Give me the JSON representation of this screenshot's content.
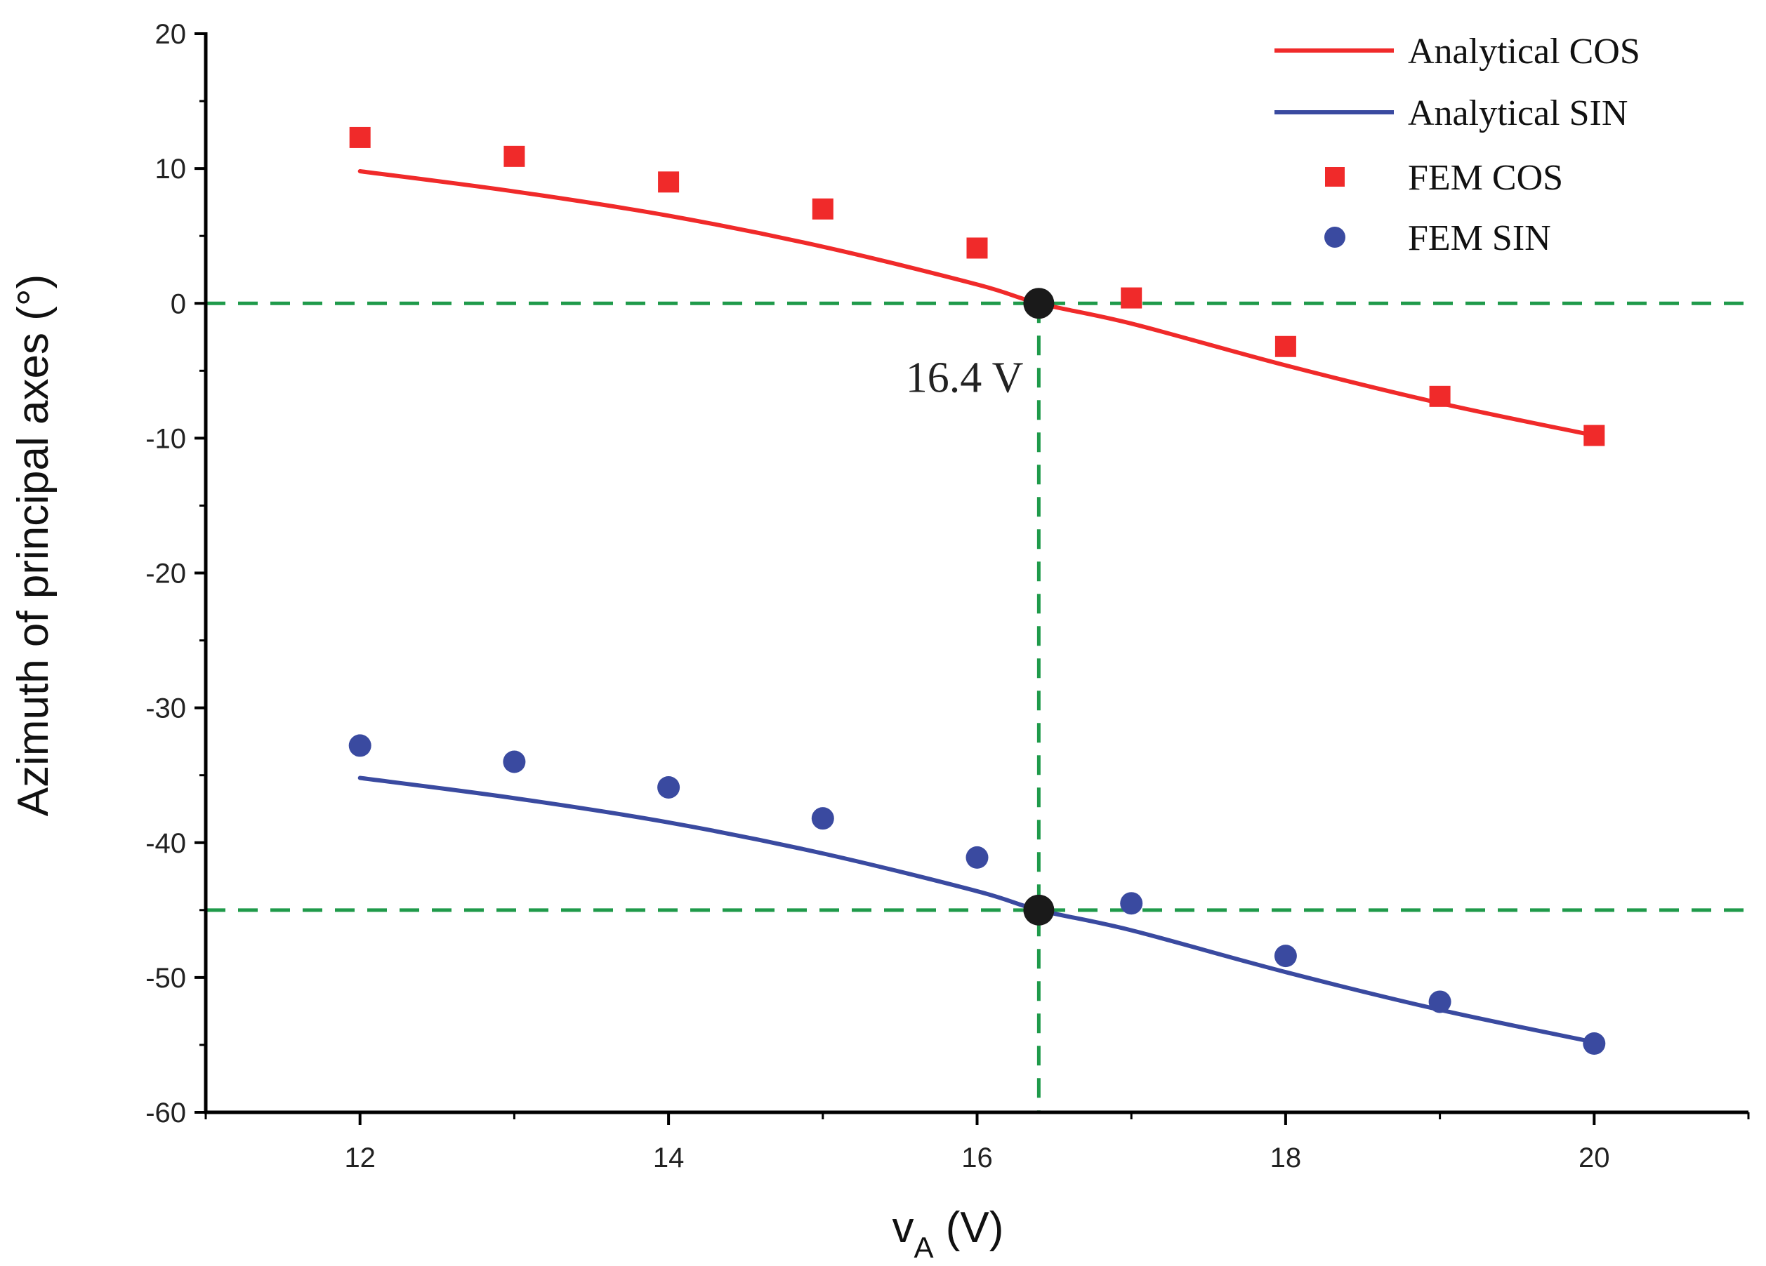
{
  "colors": {
    "cos": "#f02a2a",
    "sin": "#3a4aa0",
    "guide": "#1f9a4a",
    "marker": "#1a1a1a",
    "axis": "#000000"
  },
  "chart_data": {
    "type": "scatter",
    "xlabel_main": "v",
    "xlabel_sub": "A",
    "xlabel_unit": " (V)",
    "ylabel": "Azimuth of principal axes (°)",
    "xlim": [
      11,
      21
    ],
    "ylim": [
      -60,
      20
    ],
    "x_ticks": [
      12,
      14,
      16,
      18,
      20
    ],
    "x_tick_labels": [
      "12",
      "14",
      "16",
      "18",
      "20"
    ],
    "y_ticks": [
      20,
      10,
      0,
      -10,
      -20,
      -30,
      -40,
      -50,
      -60
    ],
    "y_tick_labels": [
      "20",
      "10",
      "0",
      "-10",
      "-20",
      "-30",
      "-40",
      "-50",
      "-60"
    ],
    "legend_position": "top-right",
    "series": [
      {
        "name": "Analytical COS",
        "kind": "line",
        "color_key": "cos",
        "x": [
          12,
          13,
          14,
          15,
          16,
          16.4,
          17,
          18,
          19,
          20
        ],
        "values": [
          9.8,
          8.3,
          6.5,
          4.2,
          1.4,
          0.0,
          -1.5,
          -4.6,
          -7.4,
          -9.8
        ]
      },
      {
        "name": "Analytical SIN",
        "kind": "line",
        "color_key": "sin",
        "x": [
          12,
          13,
          14,
          15,
          16,
          16.4,
          17,
          18,
          19,
          20
        ],
        "values": [
          -35.2,
          -36.7,
          -38.5,
          -40.8,
          -43.6,
          -45.0,
          -46.5,
          -49.6,
          -52.4,
          -54.8
        ]
      },
      {
        "name": "FEM COS",
        "kind": "square",
        "color_key": "cos",
        "x": [
          12,
          13,
          14,
          15,
          16,
          17,
          18,
          19,
          20
        ],
        "values": [
          12.3,
          10.9,
          9.0,
          7.0,
          4.1,
          0.4,
          -3.2,
          -6.9,
          -9.8
        ]
      },
      {
        "name": "FEM SIN",
        "kind": "circle",
        "color_key": "sin",
        "x": [
          12,
          13,
          14,
          15,
          16,
          17,
          18,
          19,
          20
        ],
        "values": [
          -32.8,
          -34.0,
          -35.9,
          -38.2,
          -41.1,
          -44.5,
          -48.4,
          -51.8,
          -54.9
        ]
      }
    ],
    "guides": {
      "horizontal_y": [
        0,
        -45
      ],
      "vertical_x": 16.4
    },
    "intersections": [
      {
        "x": 16.4,
        "y": 0
      },
      {
        "x": 16.4,
        "y": -45
      }
    ],
    "annotation": {
      "text": "16.4 V",
      "x": 16.4,
      "y": -4.5
    }
  }
}
